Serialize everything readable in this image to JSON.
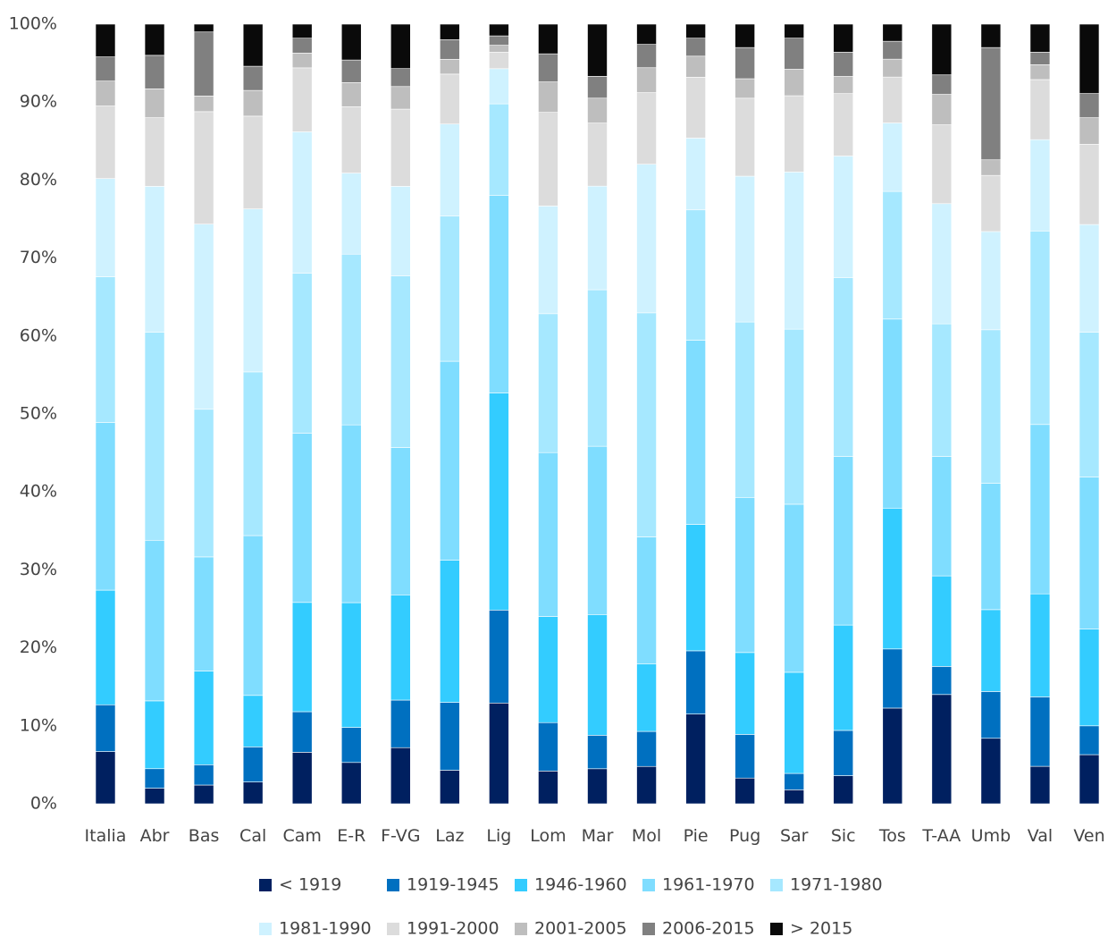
{
  "chart_data": {
    "type": "bar",
    "stacked": true,
    "normalized": true,
    "title": "",
    "xlabel": "",
    "ylabel": "",
    "ylim": [
      0,
      100
    ],
    "yticks": [
      0,
      10,
      20,
      30,
      40,
      50,
      60,
      70,
      80,
      90,
      100
    ],
    "ytick_labels": [
      "0%",
      "10%",
      "20%",
      "30%",
      "40%",
      "50%",
      "60%",
      "70%",
      "80%",
      "90%",
      "100%"
    ],
    "grid": false,
    "legend_position": "bottom",
    "categories": [
      "Italia",
      "Abr",
      "Bas",
      "Cal",
      "Cam",
      "E-R",
      "F-VG",
      "Laz",
      "Lig",
      "Lom",
      "Mar",
      "Mol",
      "Pie",
      "Pug",
      "Sar",
      "Sic",
      "Tos",
      "T-AA",
      "Umb",
      "Val",
      "Ven"
    ],
    "series": [
      {
        "name": "< 1919",
        "color": "#002060",
        "values": [
          6.7,
          2.0,
          2.4,
          2.8,
          6.6,
          5.3,
          7.2,
          4.3,
          12.9,
          4.2,
          4.5,
          4.8,
          11.5,
          3.3,
          1.8,
          3.6,
          12.3,
          14.0,
          8.4,
          4.8,
          6.3
        ]
      },
      {
        "name": "1919-1945",
        "color": "#0070C0",
        "values": [
          6.0,
          2.5,
          2.6,
          4.5,
          5.2,
          4.5,
          6.1,
          8.7,
          11.9,
          6.2,
          4.3,
          4.5,
          8.1,
          5.6,
          2.1,
          5.8,
          7.6,
          3.6,
          6.0,
          8.9,
          3.7
        ]
      },
      {
        "name": "1946-1960",
        "color": "#33CCFF",
        "values": [
          14.7,
          8.7,
          12.0,
          6.6,
          14.0,
          16.0,
          13.5,
          18.2,
          27.8,
          13.6,
          15.5,
          8.7,
          16.2,
          10.5,
          13.0,
          13.5,
          18.1,
          11.6,
          10.5,
          13.2,
          12.4
        ]
      },
      {
        "name": "1961-1970",
        "color": "#7FDDFF",
        "values": [
          21.5,
          20.6,
          14.6,
          20.5,
          21.7,
          22.8,
          18.9,
          25.5,
          25.3,
          21.0,
          21.6,
          16.3,
          23.6,
          19.9,
          21.6,
          21.6,
          24.3,
          15.3,
          16.2,
          21.7,
          19.5
        ]
      },
      {
        "name": "1971-1980",
        "color": "#A6E8FF",
        "values": [
          18.7,
          26.7,
          18.9,
          21.0,
          20.5,
          21.9,
          22.0,
          18.6,
          11.7,
          17.8,
          20.1,
          28.8,
          16.7,
          22.5,
          22.5,
          22.9,
          16.4,
          17.0,
          19.7,
          24.8,
          18.6
        ]
      },
      {
        "name": "1981-1990",
        "color": "#CFF2FF",
        "values": [
          12.6,
          18.7,
          23.7,
          20.9,
          18.1,
          10.4,
          11.5,
          11.8,
          4.5,
          13.8,
          13.3,
          19.1,
          9.2,
          18.7,
          20.2,
          15.6,
          8.8,
          15.4,
          12.6,
          11.7,
          13.8
        ]
      },
      {
        "name": "1991-2000",
        "color": "#DCDCDC",
        "values": [
          9.3,
          8.8,
          14.4,
          11.9,
          8.2,
          8.5,
          9.9,
          6.4,
          2.1,
          12.0,
          8.1,
          9.2,
          7.8,
          10.0,
          9.8,
          8.0,
          5.9,
          10.1,
          7.2,
          7.7,
          10.3
        ]
      },
      {
        "name": "2001-2005",
        "color": "#BEBEBE",
        "values": [
          3.2,
          3.7,
          2.0,
          3.3,
          1.9,
          3.1,
          2.9,
          1.9,
          0.9,
          3.9,
          3.2,
          3.2,
          2.7,
          2.5,
          3.4,
          2.2,
          2.3,
          3.9,
          2.0,
          1.9,
          3.4
        ]
      },
      {
        "name": "2006-2015",
        "color": "#808080",
        "values": [
          3.1,
          4.3,
          8.2,
          3.1,
          1.9,
          2.9,
          2.3,
          2.5,
          1.2,
          3.6,
          2.8,
          3.0,
          2.3,
          4.0,
          4.0,
          3.1,
          2.3,
          2.5,
          14.4,
          1.6,
          3.1
        ]
      },
      {
        "name": "> 2015",
        "color": "#0A0A0A",
        "values": [
          4.2,
          4.0,
          1.0,
          5.4,
          1.8,
          4.6,
          5.7,
          2.0,
          1.5,
          3.8,
          6.7,
          2.6,
          1.8,
          3.0,
          1.8,
          3.6,
          2.2,
          6.5,
          3.0,
          3.6,
          8.9
        ]
      }
    ]
  }
}
